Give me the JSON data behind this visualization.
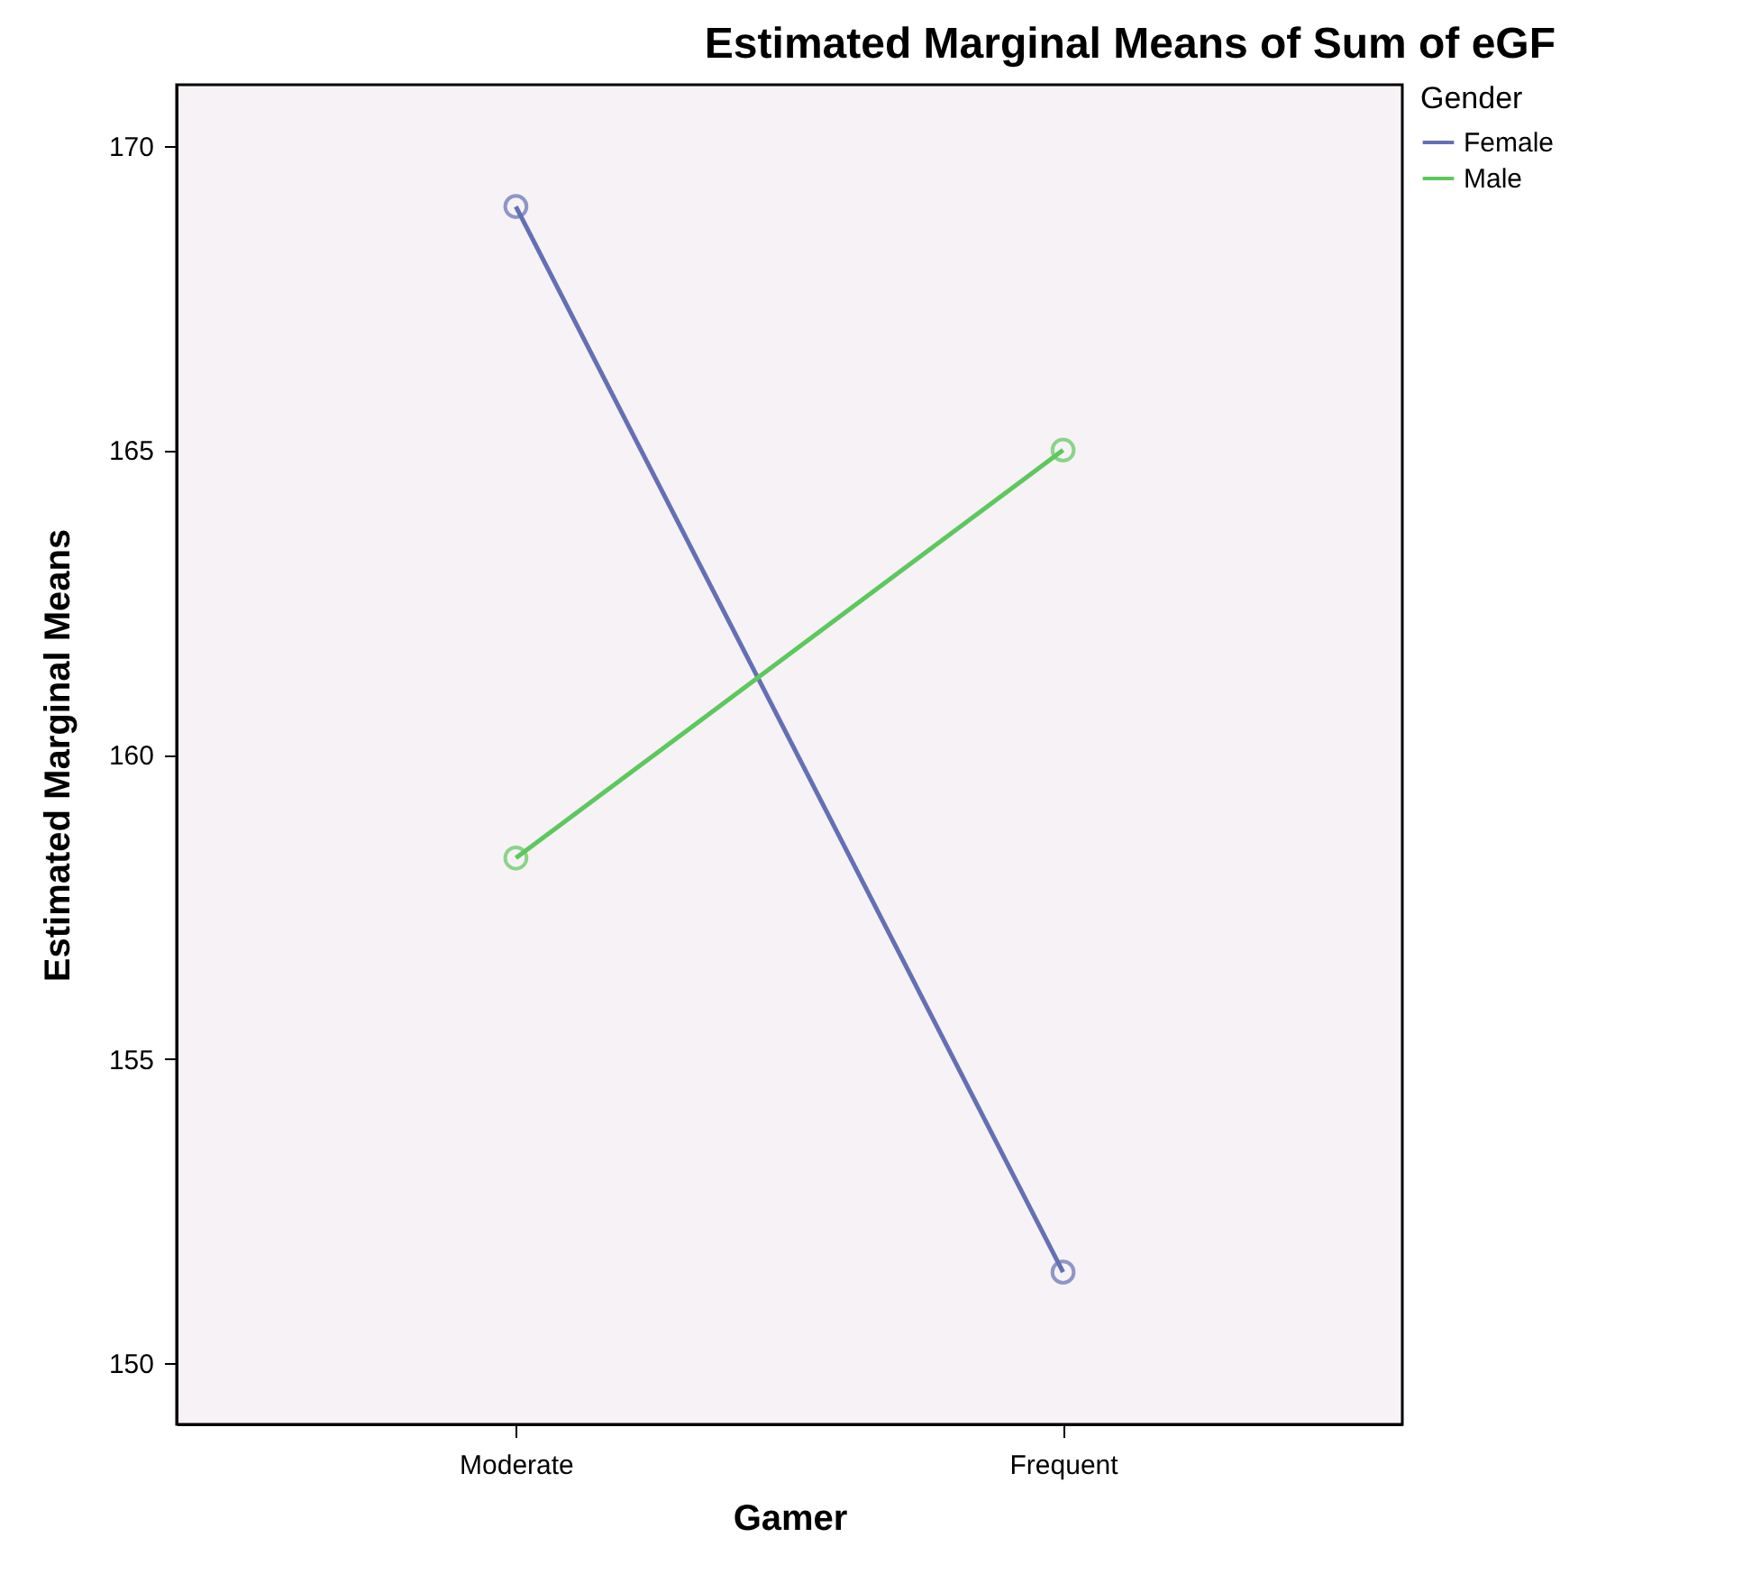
{
  "chart_data": {
    "type": "line",
    "title": "Estimated Marginal Means of Sum of eGF",
    "xlabel": "Gamer",
    "ylabel": "Estimated Marginal Means",
    "legend_title": "Gender",
    "categories": [
      "Moderate",
      "Frequent"
    ],
    "series": [
      {
        "name": "Female",
        "color": "#6470b4",
        "values": [
          169.0,
          151.5
        ]
      },
      {
        "name": "Male",
        "color": "#5dc85d",
        "values": [
          158.3,
          165.0
        ]
      }
    ],
    "ylim": [
      149,
      171
    ],
    "yticks": [
      150,
      155,
      160,
      165,
      170
    ],
    "grid": false,
    "legend": "top right",
    "marker": "circle",
    "line_style": "solid"
  }
}
